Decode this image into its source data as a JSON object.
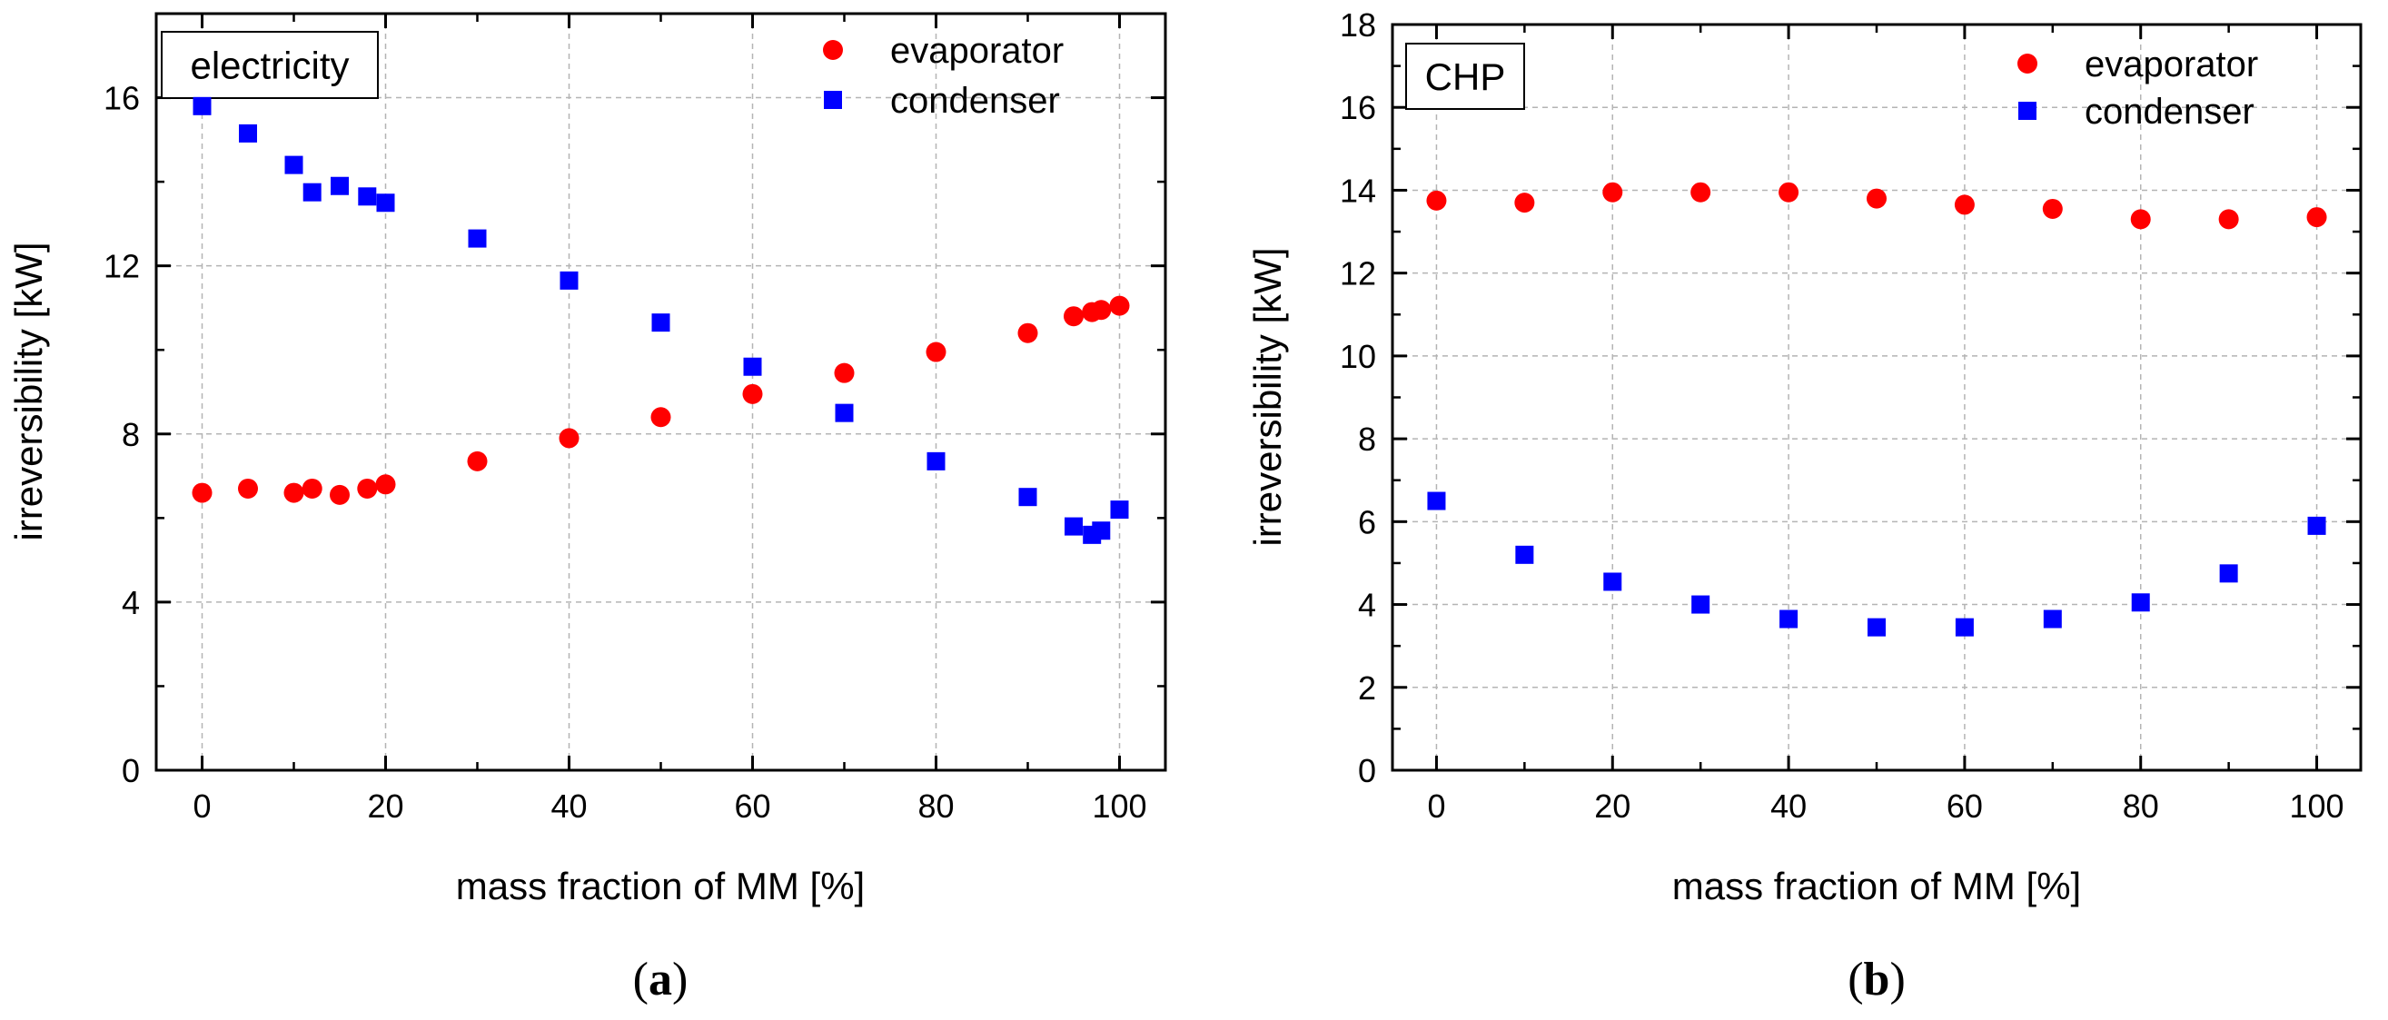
{
  "chart_data": [
    {
      "type": "scatter",
      "panel_label": "a",
      "title": "electricity",
      "xlabel": "mass fraction of MM [%]",
      "ylabel": "irreversibility [kW]",
      "xlim": [
        -5,
        105
      ],
      "ylim": [
        0,
        18
      ],
      "xticks": [
        0,
        20,
        40,
        60,
        80,
        100
      ],
      "yticks": [
        0,
        4,
        8,
        12,
        16
      ],
      "yminor": 2,
      "xminor": 10,
      "grid": true,
      "legend_position": "top-right",
      "series": [
        {
          "name": "evaporator",
          "marker": "circle",
          "color": "#ff0000",
          "x": [
            0,
            5,
            10,
            12,
            15,
            18,
            20,
            30,
            40,
            50,
            60,
            70,
            80,
            90,
            95,
            97,
            98,
            100
          ],
          "y": [
            6.6,
            6.7,
            6.6,
            6.7,
            6.55,
            6.7,
            6.8,
            7.35,
            7.9,
            8.4,
            8.95,
            9.45,
            9.95,
            10.4,
            10.8,
            10.9,
            10.95,
            11.05
          ]
        },
        {
          "name": "condenser",
          "marker": "square",
          "color": "#0000ff",
          "x": [
            0,
            5,
            10,
            12,
            15,
            18,
            20,
            30,
            40,
            50,
            60,
            70,
            80,
            90,
            95,
            97,
            98,
            100
          ],
          "y": [
            15.8,
            15.15,
            14.4,
            13.75,
            13.9,
            13.65,
            13.5,
            12.65,
            11.65,
            10.65,
            9.6,
            8.5,
            7.35,
            6.5,
            5.8,
            5.6,
            5.7,
            6.2
          ]
        }
      ]
    },
    {
      "type": "scatter",
      "panel_label": "b",
      "title": "CHP",
      "xlabel": "mass fraction of MM [%]",
      "ylabel": "irreversibility [kW]",
      "xlim": [
        -5,
        105
      ],
      "ylim": [
        0,
        18
      ],
      "xticks": [
        0,
        20,
        40,
        60,
        80,
        100
      ],
      "yticks": [
        0,
        2,
        4,
        6,
        8,
        10,
        12,
        14,
        16,
        18
      ],
      "yminor": 1,
      "xminor": 10,
      "grid": true,
      "legend_position": "top-right",
      "series": [
        {
          "name": "evaporator",
          "marker": "circle",
          "color": "#ff0000",
          "x": [
            0,
            10,
            20,
            30,
            40,
            50,
            60,
            70,
            80,
            90,
            100
          ],
          "y": [
            13.75,
            13.7,
            13.95,
            13.95,
            13.95,
            13.8,
            13.65,
            13.55,
            13.3,
            13.3,
            13.35
          ]
        },
        {
          "name": "condenser",
          "marker": "square",
          "color": "#0000ff",
          "x": [
            0,
            10,
            20,
            30,
            40,
            50,
            60,
            70,
            80,
            90,
            100
          ],
          "y": [
            6.5,
            5.2,
            4.55,
            4.0,
            3.65,
            3.45,
            3.45,
            3.65,
            4.05,
            4.75,
            5.9
          ]
        }
      ]
    }
  ]
}
